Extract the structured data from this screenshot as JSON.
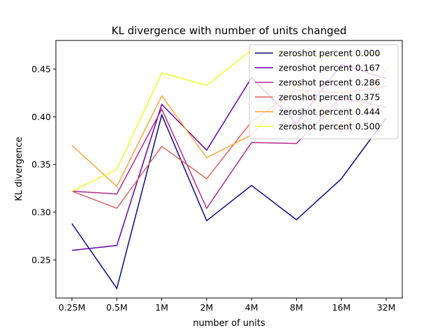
{
  "chart_data": {
    "type": "line",
    "title": "KL divergence with number of units changed",
    "xlabel": "number of units",
    "ylabel": "KL divergence",
    "categories": [
      "0.25M",
      "0.5M",
      "1M",
      "2M",
      "4M",
      "8M",
      "16M",
      "32M"
    ],
    "ylim": [
      0.21,
      0.48
    ],
    "yticks": [
      0.25,
      0.3,
      0.35,
      0.4,
      0.45
    ],
    "ytick_labels": [
      "0.25",
      "0.30",
      "0.35",
      "0.40",
      "0.45"
    ],
    "grid": false,
    "legend_position": "upper-right",
    "series": [
      {
        "name": "zeroshot percent 0.000",
        "color": "#0d0887",
        "values": [
          0.288,
          0.22,
          0.402,
          0.291,
          0.328,
          0.292,
          0.335,
          0.399
        ]
      },
      {
        "name": "zeroshot percent 0.167",
        "color": "#6a00a8",
        "values": [
          0.26,
          0.265,
          0.413,
          0.365,
          0.441,
          0.393,
          0.455,
          0.44
        ]
      },
      {
        "name": "zeroshot percent 0.286",
        "color": "#b12a90",
        "values": [
          0.322,
          0.319,
          0.408,
          0.304,
          0.373,
          0.372,
          0.42,
          0.41
        ]
      },
      {
        "name": "zeroshot percent 0.375",
        "color": "#e16462",
        "values": [
          0.322,
          0.304,
          0.369,
          0.335,
          0.395,
          0.428,
          0.425,
          0.432
        ]
      },
      {
        "name": "zeroshot percent 0.444",
        "color": "#fca636",
        "values": [
          0.37,
          0.327,
          0.422,
          0.357,
          0.381,
          0.436,
          0.385,
          0.45
        ]
      },
      {
        "name": "zeroshot percent 0.500",
        "color": "#f0f921",
        "values": [
          0.322,
          0.345,
          0.446,
          0.433,
          0.47,
          0.465,
          0.462,
          0.468
        ]
      }
    ]
  }
}
